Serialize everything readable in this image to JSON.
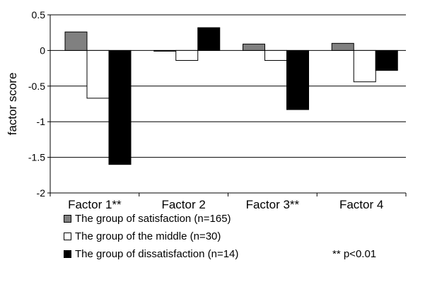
{
  "chart_data": {
    "type": "bar",
    "title": "",
    "xlabel": "",
    "ylabel": "factor score",
    "ylim": [
      -2,
      0.5
    ],
    "yticks": [
      0.5,
      0,
      -0.5,
      -1,
      -1.5,
      -2
    ],
    "ytick_labels": [
      "0.5",
      "0",
      "-0.5",
      "-1",
      "-1.5",
      "-2"
    ],
    "categories": [
      "Factor 1**",
      "Factor 2",
      "Factor 3**",
      "Factor 4"
    ],
    "series": [
      {
        "name": "The group of satisfaction (n=165)",
        "color": "#808080",
        "values": [
          0.26,
          0.0,
          0.09,
          0.1
        ]
      },
      {
        "name": "The group of the middle (n=30)",
        "color": "#ffffff",
        "values": [
          -0.67,
          -0.14,
          -0.14,
          -0.44
        ]
      },
      {
        "name": "The group of dissatisfaction (n=14)",
        "color": "#000000",
        "values": [
          -1.6,
          0.32,
          -0.83,
          -0.28
        ]
      }
    ],
    "grid": true,
    "legend_position": "bottom-left",
    "note": "** p<0.01"
  }
}
